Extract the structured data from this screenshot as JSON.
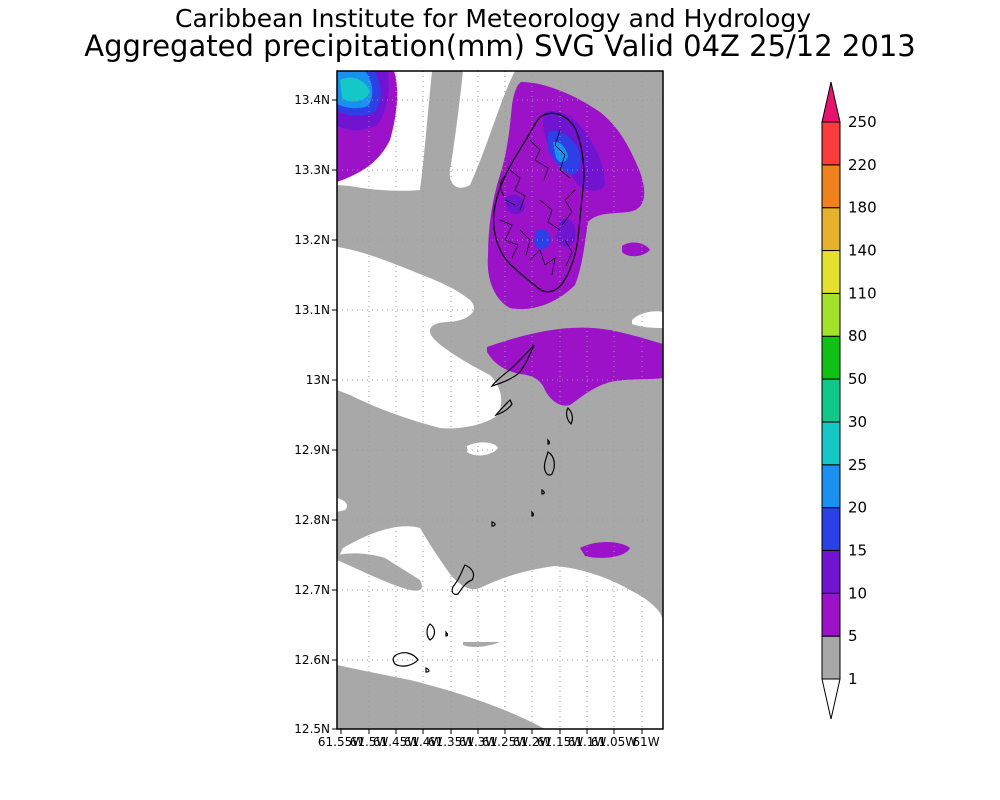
{
  "header": {
    "line1": "Caribbean Institute for Meteorology and Hydrology",
    "line2": "Aggregated precipitation(mm) SVG Valid 04Z 25/12 2013"
  },
  "map": {
    "region": "St. Vincent and the Grenadines",
    "lat_ticks": [
      "13.4N",
      "13.3N",
      "13.2N",
      "13.1N",
      "13N",
      "12.9N",
      "12.8N",
      "12.7N",
      "12.6N",
      "12.5N"
    ],
    "lon_ticks": [
      "61.55W",
      "61.5W",
      "61.45W",
      "61.4W",
      "61.35W",
      "61.3W",
      "61.25W",
      "61.2W",
      "61.15W",
      "61.1W",
      "61.05W",
      "61W"
    ],
    "lat_range": [
      12.5,
      13.44
    ],
    "lon_range": [
      -61.55,
      -61.0
    ],
    "background_color": "#a8a8a8",
    "no_rain_color": "#ffffff",
    "gridlines": "dotted"
  },
  "colorbar": {
    "levels": [
      "1",
      "5",
      "10",
      "15",
      "20",
      "25",
      "30",
      "50",
      "80",
      "110",
      "140",
      "180",
      "220",
      "250"
    ],
    "colors": [
      "#a8a8a8",
      "#9c12c8",
      "#7014d2",
      "#2d3fe6",
      "#1a91f0",
      "#15c7c7",
      "#10c88a",
      "#10c014",
      "#a4e12a",
      "#e2e22e",
      "#e6b22c",
      "#f0821e",
      "#fa3c3c",
      "#e6146e"
    ],
    "below_color": "#ffffff"
  }
}
